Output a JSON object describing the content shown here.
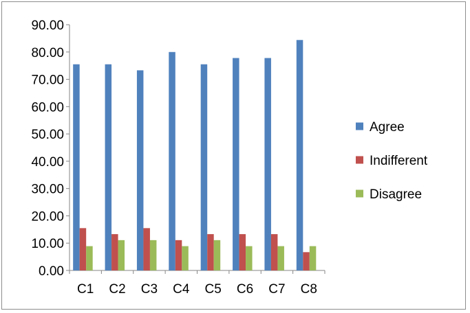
{
  "chart_data": {
    "type": "bar",
    "categories": [
      "C1",
      "C2",
      "C3",
      "C4",
      "C5",
      "C6",
      "C7",
      "C8"
    ],
    "series": [
      {
        "name": "Agree",
        "color": "#4F81BD",
        "values": [
          75.5,
          75.5,
          73.3,
          80.0,
          75.5,
          77.8,
          77.8,
          84.4
        ]
      },
      {
        "name": "Indifferent",
        "color": "#C0504D",
        "values": [
          15.5,
          13.3,
          15.5,
          11.1,
          13.3,
          13.3,
          13.3,
          6.7
        ]
      },
      {
        "name": "Disagree",
        "color": "#9BBB59",
        "values": [
          8.9,
          11.1,
          11.1,
          8.9,
          11.1,
          8.9,
          8.9,
          8.9
        ]
      }
    ],
    "yticks": [
      "0.00",
      "10.00",
      "20.00",
      "30.00",
      "40.00",
      "50.00",
      "60.00",
      "70.00",
      "80.00",
      "90.00"
    ],
    "ylim": [
      0,
      90
    ],
    "grid": false,
    "legend_position": "right",
    "title": "",
    "xlabel": "",
    "ylabel": ""
  }
}
